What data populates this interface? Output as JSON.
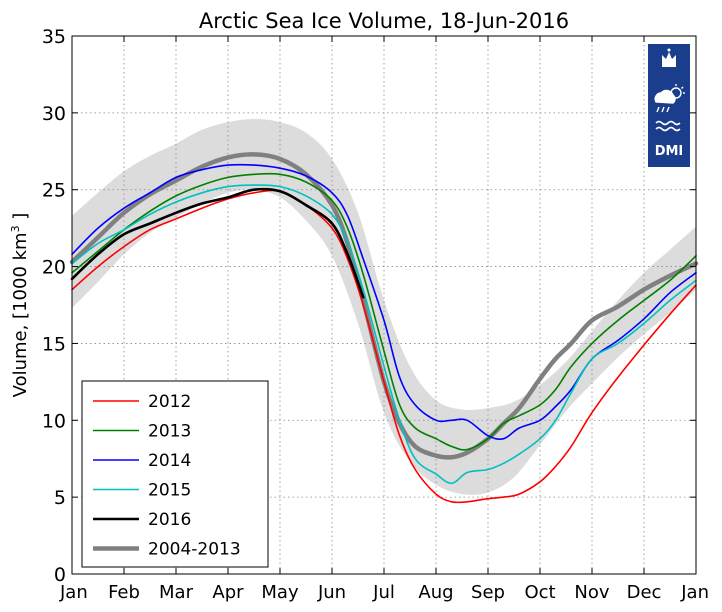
{
  "chart_data": {
    "type": "line",
    "title": "Arctic Sea Ice Volume, 18-Jun-2016",
    "ylabel": "Volume, [1000 km³ ]",
    "ylabel_main": "Volume, [1000 km",
    "ylabel_sup": "3",
    "ylabel_end": " ]",
    "xlabel": "",
    "ylim": [
      0,
      35
    ],
    "yticks": [
      0,
      5,
      10,
      15,
      20,
      25,
      30,
      35
    ],
    "x_unit": "month",
    "xlim": [
      0,
      12
    ],
    "xtick_labels": [
      "Jan",
      "Feb",
      "Mar",
      "Apr",
      "May",
      "Jun",
      "Jul",
      "Aug",
      "Sep",
      "Oct",
      "Nov",
      "Dec",
      "Jan"
    ],
    "grid": true,
    "legend_position": "bottom-left",
    "band": {
      "x": [
        0,
        0.5,
        1,
        1.5,
        2,
        2.5,
        3,
        3.5,
        4,
        4.5,
        5,
        5.5,
        6,
        6.5,
        7,
        7.5,
        8,
        8.5,
        9,
        9.5,
        10,
        10.5,
        11,
        11.5,
        12
      ],
      "upper": [
        23.3,
        24.8,
        26.2,
        27.2,
        28.0,
        28.9,
        29.4,
        29.6,
        29.4,
        28.7,
        27.0,
        23.5,
        17.8,
        13.5,
        11.3,
        10.7,
        10.8,
        11.2,
        12.3,
        13.8,
        15.8,
        17.8,
        19.6,
        21.1,
        22.6
      ],
      "lower": [
        17.3,
        19.0,
        20.8,
        22.2,
        23.2,
        24.1,
        24.8,
        25.0,
        24.5,
        23.0,
        20.7,
        16.3,
        10.5,
        7.3,
        5.8,
        5.2,
        5.3,
        6.3,
        8.4,
        10.6,
        12.4,
        14.1,
        15.6,
        17.0,
        18.5
      ],
      "color": "#dcdcdc"
    },
    "series": [
      {
        "name": "2012",
        "color": "#ff0000",
        "width": 1.6,
        "x": [
          0,
          0.5,
          1,
          1.5,
          2,
          2.5,
          3,
          3.5,
          4,
          4.5,
          5,
          5.3,
          5.6,
          6,
          6.3,
          6.6,
          7,
          7.3,
          7.6,
          8,
          8.3,
          8.6,
          9,
          9.3,
          9.6,
          10,
          10.5,
          11,
          11.5,
          12
        ],
        "y": [
          18.5,
          20.0,
          21.3,
          22.4,
          23.1,
          23.8,
          24.4,
          24.8,
          24.9,
          24.0,
          22.5,
          20.5,
          17.5,
          12.5,
          9.0,
          6.8,
          5.2,
          4.7,
          4.7,
          4.9,
          5.0,
          5.2,
          6.0,
          7.0,
          8.3,
          10.5,
          12.8,
          14.9,
          16.9,
          18.8
        ]
      },
      {
        "name": "2013",
        "color": "#008000",
        "width": 1.6,
        "x": [
          0,
          0.5,
          1,
          1.5,
          2,
          2.5,
          3,
          3.5,
          4,
          4.5,
          5,
          5.3,
          5.6,
          6,
          6.3,
          6.6,
          7,
          7.3,
          7.6,
          8,
          8.3,
          8.6,
          9,
          9.3,
          9.6,
          10,
          10.5,
          11,
          11.5,
          12
        ],
        "y": [
          19.6,
          21.0,
          22.4,
          23.6,
          24.6,
          25.3,
          25.8,
          26.0,
          26.0,
          25.5,
          24.3,
          22.5,
          19.5,
          14.5,
          11.0,
          9.5,
          8.8,
          8.3,
          8.1,
          8.8,
          9.8,
          10.3,
          11.0,
          12.0,
          13.5,
          15.0,
          16.5,
          17.8,
          19.1,
          20.7
        ]
      },
      {
        "name": "2014",
        "color": "#0000ff",
        "width": 1.6,
        "x": [
          0,
          0.5,
          1,
          1.5,
          2,
          2.5,
          3,
          3.5,
          4,
          4.5,
          5,
          5.3,
          5.6,
          6,
          6.3,
          6.6,
          7,
          7.3,
          7.6,
          8,
          8.3,
          8.6,
          9,
          9.3,
          9.6,
          10,
          10.5,
          11,
          11.5,
          12
        ],
        "y": [
          20.8,
          22.5,
          23.8,
          24.8,
          25.8,
          26.3,
          26.6,
          26.6,
          26.4,
          25.9,
          24.8,
          23.3,
          20.5,
          16.5,
          12.8,
          11.0,
          10.0,
          10.0,
          10.0,
          9.0,
          8.8,
          9.5,
          10.0,
          10.9,
          12.0,
          14.0,
          15.2,
          16.6,
          18.3,
          19.6
        ]
      },
      {
        "name": "2015",
        "color": "#00c0c0",
        "width": 1.6,
        "x": [
          0,
          0.5,
          1,
          1.5,
          2,
          2.5,
          3,
          3.5,
          4,
          4.5,
          5,
          5.3,
          5.6,
          6,
          6.3,
          6.6,
          7,
          7.3,
          7.6,
          8,
          8.3,
          8.6,
          9,
          9.3,
          9.6,
          10,
          10.5,
          11,
          11.5,
          12
        ],
        "y": [
          20.2,
          21.5,
          22.4,
          23.4,
          24.2,
          24.8,
          25.2,
          25.3,
          25.2,
          24.6,
          23.4,
          21.6,
          18.5,
          13.5,
          10.0,
          7.5,
          6.5,
          5.9,
          6.6,
          6.8,
          7.2,
          7.8,
          8.8,
          10.0,
          11.8,
          14.0,
          15.0,
          16.3,
          17.8,
          19.1
        ]
      },
      {
        "name": "2016",
        "color": "#000000",
        "width": 2.6,
        "x": [
          0,
          0.5,
          1,
          1.5,
          2,
          2.5,
          3,
          3.5,
          4,
          4.5,
          5,
          5.3,
          5.6
        ],
        "y": [
          19.2,
          20.8,
          22.1,
          22.8,
          23.5,
          24.1,
          24.5,
          25.0,
          24.9,
          24.0,
          22.8,
          20.8,
          18.0
        ]
      },
      {
        "name": "2004-2013",
        "color": "#808080",
        "width": 4.5,
        "x": [
          0,
          0.5,
          1,
          1.5,
          2,
          2.5,
          3,
          3.5,
          4,
          4.5,
          5,
          5.3,
          5.6,
          6,
          6.3,
          6.6,
          7,
          7.3,
          7.6,
          8,
          8.3,
          8.6,
          9,
          9.3,
          9.6,
          10,
          10.5,
          11,
          11.5,
          12
        ],
        "y": [
          20.3,
          21.9,
          23.5,
          24.7,
          25.6,
          26.5,
          27.1,
          27.3,
          27.0,
          26.0,
          24.0,
          21.5,
          17.8,
          12.5,
          9.8,
          8.3,
          7.7,
          7.6,
          7.9,
          8.8,
          9.8,
          10.8,
          12.7,
          14.0,
          15.0,
          16.5,
          17.4,
          18.5,
          19.4,
          20.2
        ]
      }
    ],
    "brand_color": "#1a3e8c",
    "logo_text": "DMI"
  }
}
